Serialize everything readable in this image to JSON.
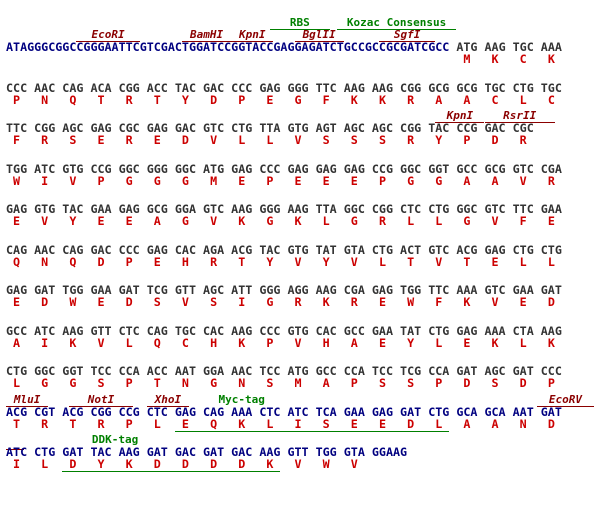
{
  "lines": [
    {
      "parts": [
        {
          "text": "ATAGGGCGGCCGGGAATTCGTCGACTGGATCCGGTACCGAGGAGATCTGCCGCCGCGATCGCC",
          "color": "#000080"
        },
        {
          "text": "ATG AAG TGC AAA",
          "color": "#333333"
        }
      ],
      "aa": [
        "M",
        "K",
        "C",
        "K"
      ],
      "annotations": [
        {
          "label": "RBS",
          "color": "#008000"
        },
        {
          "label": "Kozac Consensus",
          "color": "#008000"
        },
        {
          "label": "EcoRI",
          "color": "#8b0000"
        },
        {
          "label": "BamHI",
          "color": "#8b0000"
        },
        {
          "label": "KpnI",
          "color": "#8b0000"
        },
        {
          "label": "BglII",
          "color": "#8b0000"
        },
        {
          "label": "SgfI",
          "color": "#8b0000"
        }
      ]
    },
    {
      "parts": [
        {
          "text": "CCC AAC CAG ACA CGG ACC TAC GAC CCC GAG GGG TTC AAG AAG CGG GCG GCG TGC CTG TGC",
          "color": "#333333"
        }
      ],
      "aa": [
        "P",
        "N",
        "Q",
        "T",
        "R",
        "T",
        "Y",
        "D",
        "P",
        "E",
        "G",
        "F",
        "K",
        "K",
        "R",
        "A",
        "A",
        "C",
        "L",
        "C"
      ],
      "annotations": []
    },
    {
      "parts": [
        {
          "text": "TTC CGG AGC GAG CGC GAG GAC GTC CTG TTA GTG AGT AGC AGC CGG TAC CCG GAC CGC",
          "color": "#333333"
        }
      ],
      "aa": [
        "F",
        "R",
        "S",
        "E",
        "R",
        "E",
        "D",
        "V",
        "L",
        "L",
        "V",
        "S",
        "S",
        "S",
        "R",
        "Y",
        "P",
        "D",
        "R"
      ],
      "annotations": [
        {
          "label": "KpnI",
          "color": "#8b0000"
        },
        {
          "label": "RsrII",
          "color": "#8b0000"
        }
      ]
    },
    {
      "parts": [
        {
          "text": "TGG ATC GTG CCG GGC GGG GGC ATG GAG CCC GAG GAG GAG CCG GGC GGT GCC GCG GTC CGA",
          "color": "#333333"
        }
      ],
      "aa": [
        "W",
        "I",
        "V",
        "P",
        "G",
        "G",
        "G",
        "M",
        "E",
        "P",
        "E",
        "E",
        "E",
        "P",
        "G",
        "G",
        "A",
        "A",
        "V",
        "R"
      ],
      "annotations": []
    },
    {
      "parts": [
        {
          "text": "GAG GTG TAC GAA GAG GCG GGA GTC AAG GGG AAG TTA GGC CGG CTC CTG GGC GTC TTC GAA",
          "color": "#333333"
        }
      ],
      "aa": [
        "E",
        "V",
        "Y",
        "E",
        "E",
        "A",
        "G",
        "V",
        "K",
        "G",
        "K",
        "L",
        "G",
        "R",
        "L",
        "L",
        "G",
        "V",
        "F",
        "E"
      ],
      "annotations": []
    },
    {
      "parts": [
        {
          "text": "CAG AAC CAG GAC CCC GAG CAC AGA ACG TAC GTG TAT GTA CTG ACT GTC ACG GAG CTG CTG",
          "color": "#333333"
        }
      ],
      "aa": [
        "Q",
        "N",
        "Q",
        "D",
        "P",
        "E",
        "H",
        "R",
        "T",
        "Y",
        "V",
        "Y",
        "V",
        "L",
        "T",
        "V",
        "T",
        "E",
        "L",
        "L"
      ],
      "annotations": []
    },
    {
      "parts": [
        {
          "text": "GAG GAT TGG GAA GAT TCG GTT AGC ATT GGG AGG AAG CGA GAG TGG TTC AAA GTC GAA GAT",
          "color": "#333333"
        }
      ],
      "aa": [
        "E",
        "D",
        "W",
        "E",
        "D",
        "S",
        "V",
        "S",
        "I",
        "G",
        "R",
        "K",
        "R",
        "E",
        "W",
        "F",
        "K",
        "V",
        "E",
        "D"
      ],
      "annotations": []
    },
    {
      "parts": [
        {
          "text": "GCC ATC AAG GTT CTC CAG TGC CAC AAG CCC GTG CAC GCC GAA TAT CTG GAG AAA CTA AAG",
          "color": "#333333"
        }
      ],
      "aa": [
        "A",
        "I",
        "K",
        "V",
        "L",
        "Q",
        "C",
        "H",
        "K",
        "P",
        "V",
        "H",
        "A",
        "E",
        "Y",
        "L",
        "E",
        "K",
        "L",
        "K"
      ],
      "annotations": []
    },
    {
      "parts": [
        {
          "text": "CTG GGC GGT TCC CCA ACC AAT GGA AAC TCC ATG GCC CCA TCC TCG CCA GAT AGC GAT CCC",
          "color": "#333333"
        }
      ],
      "aa": [
        "L",
        "G",
        "G",
        "S",
        "P",
        "T",
        "N",
        "G",
        "N",
        "S",
        "M",
        "A",
        "P",
        "S",
        "S",
        "P",
        "D",
        "S",
        "D",
        "P"
      ],
      "annotations": []
    },
    {
      "parts": [
        {
          "text": "ACG CGT ACG CGG CCG CTC GAG CAG AAA CTC ATC TCA GAA GAG GAT CTG GCA GCA AAT GAT",
          "color": "#000080"
        }
      ],
      "aa": [
        "T",
        "R",
        "T",
        "R",
        "P",
        "L",
        "E",
        "Q",
        "K",
        "L",
        "I",
        "S",
        "E",
        "E",
        "D",
        "L",
        "A",
        "A",
        "N",
        "D"
      ],
      "annotations": [
        {
          "label": "MluI",
          "color": "#8b0000"
        },
        {
          "label": "NotI",
          "color": "#8b0000"
        },
        {
          "label": "XhoI",
          "color": "#8b0000"
        },
        {
          "label": "Myc-tag",
          "color": "#008000"
        },
        {
          "label": "EcoRV",
          "color": "#8b0000"
        }
      ]
    },
    {
      "parts": [
        {
          "text": "ATC CTG GAT TAC AAG GAT GAC GAT GAC AAG GTT TGG GTA GGAAG",
          "color": "#000080"
        }
      ],
      "aa": [
        "I",
        "L",
        "D",
        "Y",
        "K",
        "D",
        "D",
        "D",
        "D",
        "K",
        "V",
        "W",
        "V"
      ],
      "annotations": [
        {
          "label": "DDK-tag",
          "color": "#008000"
        }
      ]
    }
  ]
}
